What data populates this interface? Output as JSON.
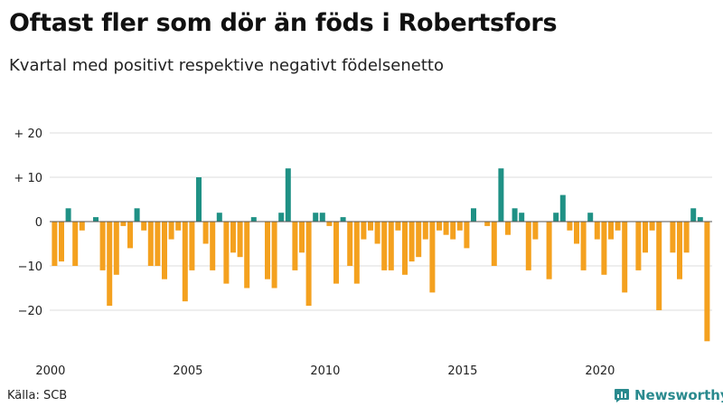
{
  "title": "Oftast fler som dör än föds i Robertsfors",
  "subtitle": "Kvartal med positivt respektive negativt födelsenetto",
  "source": "Källa: SCB",
  "brand": {
    "name": "Newsworthy",
    "icon": "bar-chart-icon",
    "color": "#2a8a8e"
  },
  "colors": {
    "positive": "#1f9185",
    "negative": "#f4a11f",
    "grid": "#dddddd",
    "zero": "#555555"
  },
  "chart_data": {
    "type": "bar",
    "title": "Oftast fler som dör än föds i Robertsfors",
    "subtitle": "Kvartal med positivt respektive negativt födelsenetto",
    "xlabel": "",
    "ylabel": "",
    "x_unit": "year-quarter",
    "x_start": 2000.0,
    "x_step": 0.25,
    "ylim": [
      -28,
      22
    ],
    "y_ticks": [
      {
        "value": 20,
        "label": "+ 20"
      },
      {
        "value": 10,
        "label": "+ 10"
      },
      {
        "value": 0,
        "label": "0"
      },
      {
        "value": -10,
        "label": "−10"
      },
      {
        "value": -20,
        "label": "−20"
      }
    ],
    "x_ticks": [
      {
        "value": 2000,
        "label": "2000"
      },
      {
        "value": 2005,
        "label": "2005"
      },
      {
        "value": 2010,
        "label": "2010"
      },
      {
        "value": 2015,
        "label": "2015"
      },
      {
        "value": 2020,
        "label": "2020"
      }
    ],
    "grid": true,
    "legend": "none",
    "values": [
      -10,
      -9,
      3,
      -10,
      -2,
      0,
      1,
      -11,
      -19,
      -12,
      -1,
      -6,
      3,
      -2,
      -10,
      -10,
      -13,
      -4,
      -2,
      -18,
      -11,
      10,
      -5,
      -11,
      2,
      -14,
      -7,
      -8,
      -15,
      1,
      0,
      -13,
      -15,
      2,
      12,
      -11,
      -7,
      -19,
      2,
      2,
      -1,
      -14,
      1,
      -10,
      -14,
      -4,
      -2,
      -5,
      -11,
      -11,
      -2,
      -12,
      -9,
      -8,
      -4,
      -16,
      -2,
      -3,
      -4,
      -2,
      -6,
      3,
      0,
      -1,
      -10,
      12,
      -3,
      3,
      2,
      -11,
      -4,
      0,
      -13,
      2,
      6,
      -2,
      -5,
      -11,
      2,
      -4,
      -12,
      -4,
      -2,
      -16,
      0,
      -11,
      -7,
      -2,
      -20,
      0,
      -7,
      -13,
      -7,
      3,
      1,
      -27
    ]
  }
}
